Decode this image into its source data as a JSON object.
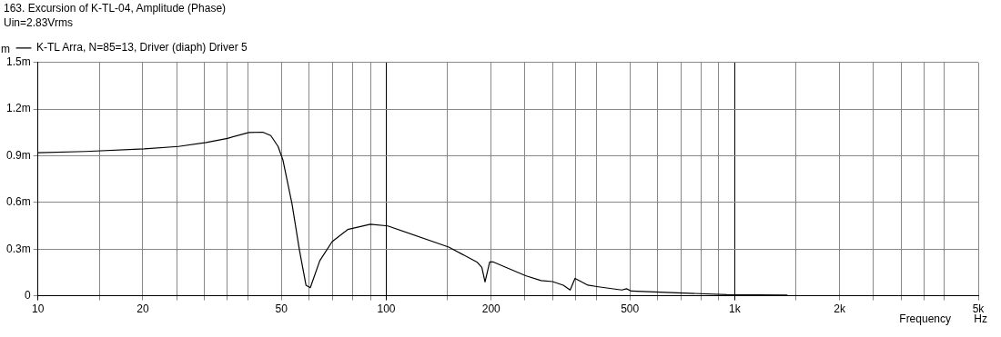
{
  "chart_data": {
    "type": "line",
    "title": "163. Excursion of K-TL-04, Amplitude (Phase)",
    "subtitle": "Uin=2.83Vrms",
    "xlabel": "Frequency",
    "ylabel": "m",
    "annotations": [
      "Hz"
    ],
    "log": "x",
    "grid": true,
    "legend": "top left",
    "marker": "none",
    "line_style": "solid",
    "xlim": [
      10,
      5000
    ],
    "xticks": [
      10,
      {
        "value": 15,
        "label": null
      },
      20,
      {
        "value": 25,
        "label": null
      },
      {
        "value": 30,
        "label": null
      },
      {
        "value": 35,
        "label": null
      },
      {
        "value": 40,
        "label": null
      },
      50,
      {
        "value": 60,
        "label": null
      },
      {
        "value": 70,
        "label": null
      },
      {
        "value": 80,
        "label": null
      },
      {
        "value": 90,
        "label": null
      },
      100,
      {
        "value": 150,
        "label": null
      },
      200,
      {
        "value": 250,
        "label": null
      },
      {
        "value": 300,
        "label": null
      },
      {
        "value": 350,
        "label": null
      },
      {
        "value": 400,
        "label": null
      },
      500,
      {
        "value": 600,
        "label": null
      },
      {
        "value": 700,
        "label": null
      },
      {
        "value": 800,
        "label": null
      },
      {
        "value": 900,
        "label": null
      },
      {
        "value": 1000,
        "label": "1k"
      },
      {
        "value": 1500,
        "label": null
      },
      {
        "value": 2000,
        "label": "2k"
      },
      {
        "value": 2500,
        "label": null
      },
      {
        "value": 3000,
        "label": null
      },
      {
        "value": 3500,
        "label": null
      },
      {
        "value": 4000,
        "label": null
      },
      {
        "value": 5000,
        "label": "5k"
      }
    ],
    "ylim": [
      0,
      1.5
    ],
    "yticks": [
      0,
      {
        "value": 0.3,
        "label": "0.3m"
      },
      {
        "value": 0.6,
        "label": "0.6m"
      },
      {
        "value": 0.9,
        "label": "0.9m"
      },
      {
        "value": 1.2,
        "label": "1.2m"
      },
      {
        "value": 1.5,
        "label": "1.5m"
      }
    ],
    "series": [
      {
        "name": "K-TL Arra, N=85=13, Driver (diaph) Driver 5",
        "color": "#000000",
        "x": [
          10,
          13.7,
          20.2,
          25.3,
          30.4,
          35,
          40.3,
          44.2,
          46.6,
          48.9,
          50.5,
          53.6,
          56.3,
          58.8,
          60.5,
          64.4,
          69.9,
          77.5,
          90,
          101,
          151,
          182,
          188,
          192,
          198,
          203,
          251,
          278,
          300,
          322,
          337,
          348,
          379,
          402,
          474,
          489,
          505,
          684,
          949,
          1417
        ],
        "values": [
          0.92,
          0.928,
          0.945,
          0.96,
          0.986,
          1.012,
          1.05,
          1.052,
          1.03,
          0.96,
          0.872,
          0.593,
          0.295,
          0.068,
          0.052,
          0.225,
          0.348,
          0.426,
          0.46,
          0.449,
          0.313,
          0.217,
          0.182,
          0.089,
          0.217,
          0.217,
          0.129,
          0.098,
          0.091,
          0.068,
          0.037,
          0.112,
          0.068,
          0.059,
          0.037,
          0.045,
          0.03,
          0.019,
          0.007,
          0.004
        ]
      }
    ]
  }
}
